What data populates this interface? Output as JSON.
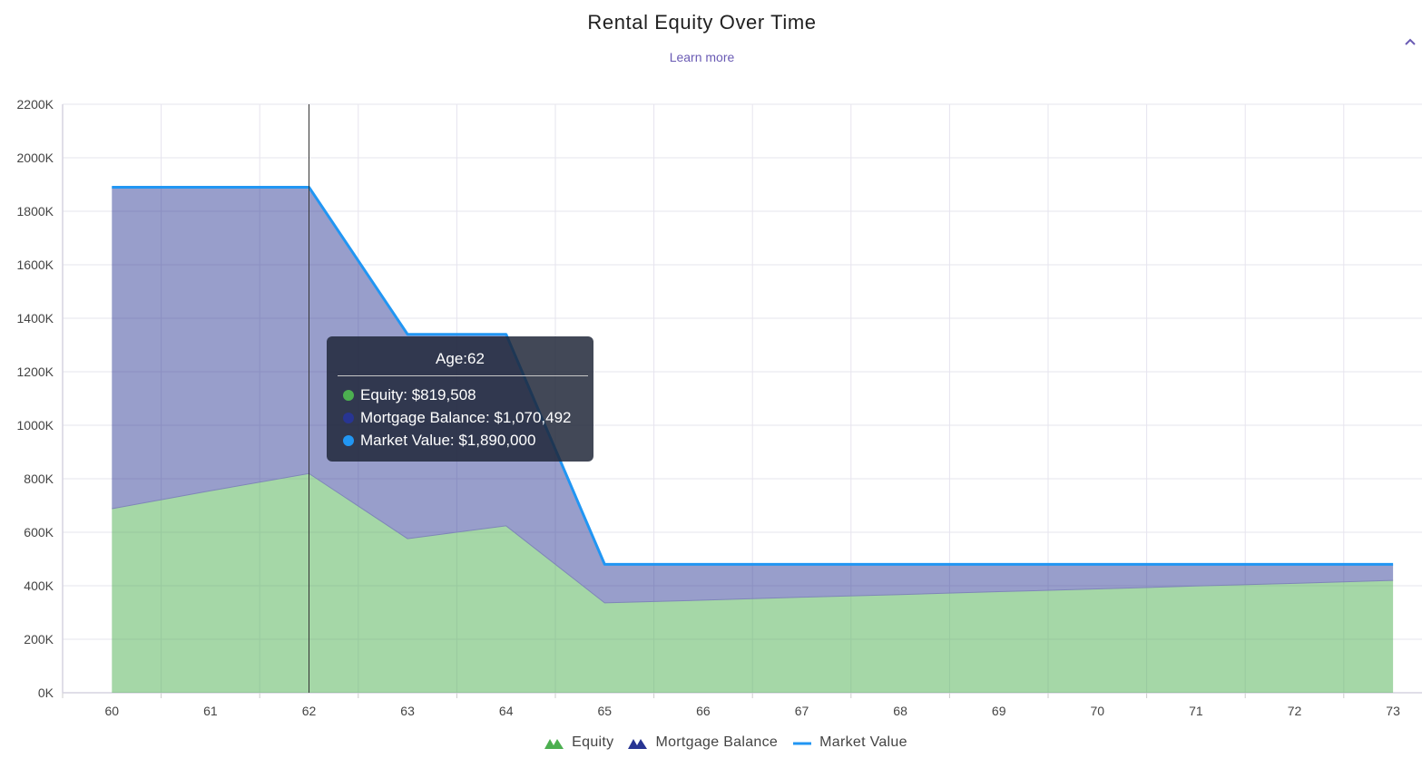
{
  "header": {
    "title": "Rental Equity Over Time",
    "learn_more": "Learn more",
    "collapse_icon": "chevron-up-icon"
  },
  "colors": {
    "equity": "#4caf50",
    "mortgage": "#283593",
    "market": "#2196f3",
    "equity_fill": "#a5d6a7",
    "mortgage_fill": "#979fce",
    "accent": "#6a5bb4"
  },
  "tooltip": {
    "title": "Age:62",
    "rows": [
      {
        "label": "Equity: $819,508",
        "color": "#4caf50"
      },
      {
        "label": "Mortgage Balance: $1,070,492",
        "color": "#283593"
      },
      {
        "label": "Market Value: $1,890,000",
        "color": "#2196f3"
      }
    ]
  },
  "legend": [
    {
      "label": "Equity",
      "icon": "area-icon",
      "color": "#4caf50"
    },
    {
      "label": "Mortgage Balance",
      "icon": "area-icon",
      "color": "#283593"
    },
    {
      "label": "Market Value",
      "icon": "line-icon",
      "color": "#2196f3"
    }
  ],
  "chart_data": {
    "type": "area",
    "title": "Rental Equity Over Time",
    "xlabel": "Age",
    "ylabel": "",
    "categories": [
      "60",
      "61",
      "62",
      "63",
      "64",
      "65",
      "66",
      "67",
      "68",
      "69",
      "70",
      "71",
      "72",
      "73"
    ],
    "y_ticks": [
      "0K",
      "200K",
      "400K",
      "600K",
      "800K",
      "1000K",
      "1200K",
      "1400K",
      "1600K",
      "1800K",
      "2000K",
      "2200K"
    ],
    "ylim": [
      0,
      2200000
    ],
    "stacked": true,
    "grid": true,
    "legend_position": "bottom",
    "series": [
      {
        "name": "Equity",
        "type": "area",
        "values": [
          688000,
          755000,
          819508,
          576000,
          624000,
          336000,
          346000,
          357000,
          367000,
          378000,
          388000,
          399000,
          409000,
          420000
        ]
      },
      {
        "name": "Mortgage Balance",
        "type": "area",
        "values": [
          1202000,
          1135000,
          1070492,
          764000,
          716000,
          144000,
          134000,
          123000,
          113000,
          102000,
          92000,
          81000,
          71000,
          60000
        ]
      },
      {
        "name": "Market Value",
        "type": "line",
        "values": [
          1890000,
          1890000,
          1890000,
          1340000,
          1340000,
          480000,
          480000,
          480000,
          480000,
          480000,
          480000,
          480000,
          480000,
          480000
        ]
      }
    ],
    "hover_category": "62"
  }
}
